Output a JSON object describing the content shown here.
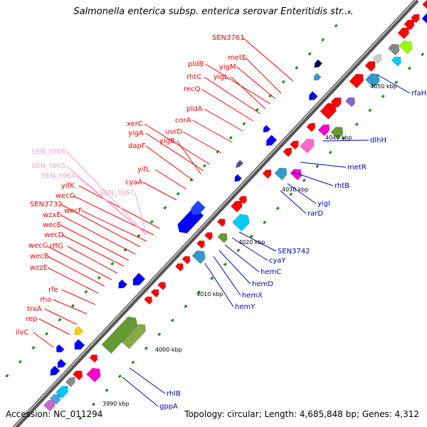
{
  "title": "Salmonella enterica subsp. enterica serovar Enteritidis str....",
  "footer": {
    "accession_label": "Accession:",
    "accession": "NC_011294",
    "topology_label": "Topology:",
    "topology": "circular;",
    "length_label": "Length:",
    "length": "4,685,848 bp;",
    "genes_label": "Genes:",
    "genes": "4,312"
  },
  "scale_ticks": [
    "3990 kbp",
    "4000 kbp",
    "4010 kbp",
    "4020 kbp",
    "4030 kbp",
    "4040 kbp",
    "4050 kbp"
  ],
  "genes_forward": [
    "ilvC",
    "rep",
    "trxA",
    "rho",
    "rfe",
    "wzzE",
    "wecB",
    "wecC",
    "rffG",
    "wecD",
    "wecE",
    "wzxE",
    "SEN3732",
    "wecF",
    "wecG",
    "yifK",
    "SEN_t064",
    "SEN_t065",
    "SEN_t066",
    "SEN_t067",
    "cyaA",
    "yifL",
    "dapF",
    "yigB",
    "yigA",
    "xerC",
    "uvrD",
    "corA",
    "pldA",
    "recQ",
    "rhtC",
    "yigL",
    "pldB",
    "yigM",
    "metE",
    "SEN3761"
  ],
  "genes_reverse": [
    "gppA",
    "rhlB",
    "hemY",
    "hemX",
    "hemD",
    "hemC",
    "cyaY",
    "SEN3742",
    "rarD",
    "yigI",
    "rhtB",
    "metR",
    "dlhH",
    "rfaH"
  ],
  "colors": {
    "forward_label": "#ff0000",
    "trna_label": "#ff9ccc",
    "reverse_label": "#0000cc",
    "forward_cds": "#ff0000",
    "reverse_cds": "#0000ff",
    "backbone": "#888888",
    "tick": "#009900"
  }
}
